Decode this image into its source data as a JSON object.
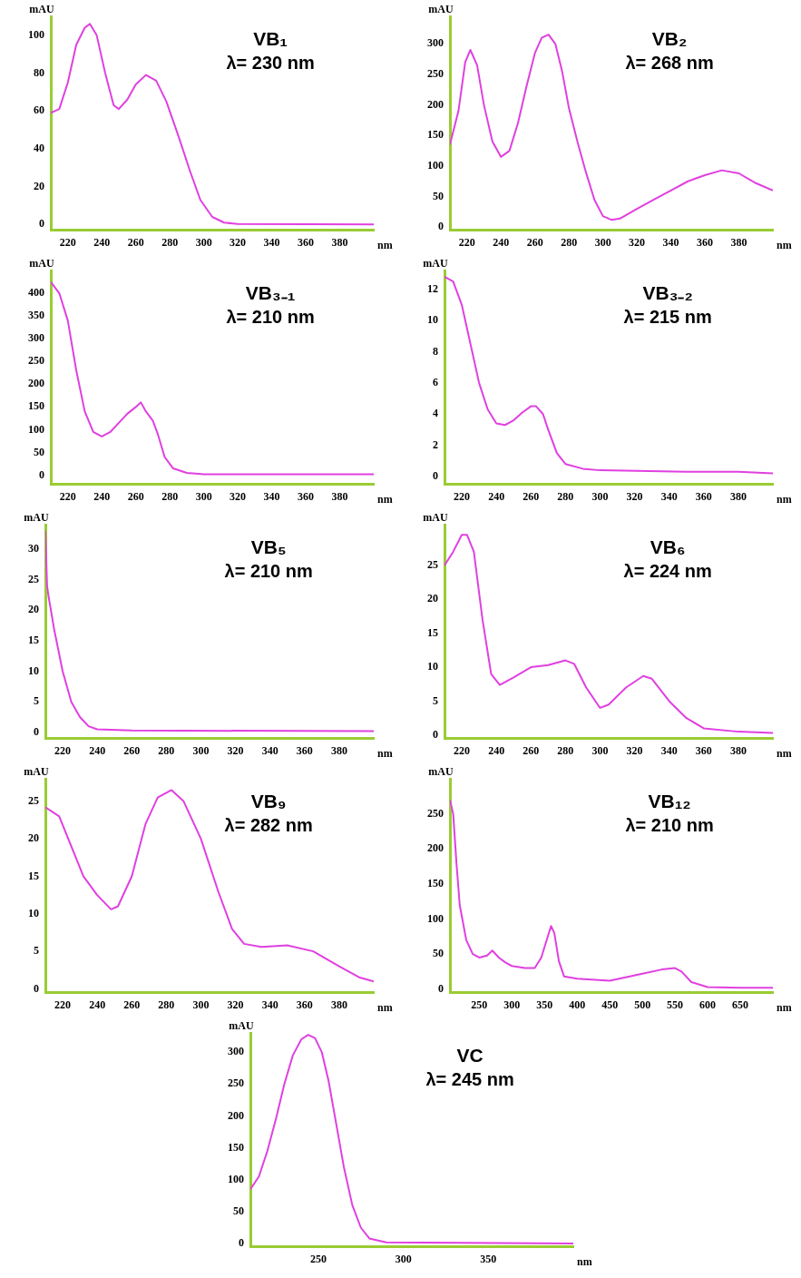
{
  "chart_data": [
    {
      "type": "line",
      "title": "VB₁",
      "subtitle": "λ= 230 nm",
      "xlabel": "nm",
      "ylabel": "mAU",
      "color": "#e040e0",
      "xlim": [
        210,
        400
      ],
      "ylim": [
        -3,
        110
      ],
      "xticks": [
        220,
        240,
        260,
        280,
        300,
        320,
        340,
        360,
        380
      ],
      "yticks": [
        0,
        20,
        40,
        60,
        80,
        100
      ],
      "x": [
        210,
        215,
        220,
        225,
        230,
        233,
        237,
        242,
        247,
        250,
        255,
        260,
        266,
        272,
        278,
        285,
        292,
        298,
        305,
        312,
        320,
        400
      ],
      "values": [
        59,
        61,
        75,
        95,
        104,
        106,
        100,
        80,
        63,
        61,
        66,
        74,
        79,
        76,
        65,
        47,
        28,
        13,
        4,
        1,
        0.3,
        0
      ]
    },
    {
      "type": "line",
      "title": "VB₂",
      "subtitle": "λ= 268 nm",
      "xlabel": "nm",
      "ylabel": "mAU",
      "color": "#e040e0",
      "xlim": [
        210,
        400
      ],
      "ylim": [
        -5,
        345
      ],
      "xticks": [
        220,
        240,
        260,
        280,
        300,
        320,
        340,
        360,
        380
      ],
      "yticks": [
        0,
        50,
        100,
        150,
        200,
        250,
        300
      ],
      "x": [
        210,
        215,
        219,
        222,
        226,
        230,
        235,
        240,
        245,
        250,
        255,
        260,
        264,
        268,
        272,
        276,
        280,
        285,
        290,
        295,
        300,
        305,
        310,
        320,
        330,
        340,
        350,
        360,
        370,
        380,
        390,
        400
      ],
      "values": [
        135,
        190,
        270,
        290,
        265,
        200,
        140,
        115,
        125,
        170,
        230,
        285,
        310,
        315,
        300,
        255,
        195,
        140,
        90,
        45,
        18,
        12,
        14,
        30,
        45,
        60,
        75,
        85,
        93,
        88,
        72,
        60
      ]
    },
    {
      "type": "line",
      "title": "VB₃₋₁",
      "subtitle": "λ= 210 nm",
      "xlabel": "nm",
      "ylabel": "mAU",
      "color": "#e040e0",
      "xlim": [
        210,
        400
      ],
      "ylim": [
        -20,
        450
      ],
      "xticks": [
        220,
        240,
        260,
        280,
        300,
        320,
        340,
        360,
        380
      ],
      "yticks": [
        0,
        50,
        100,
        150,
        200,
        250,
        300,
        350,
        400
      ],
      "x": [
        210,
        215,
        220,
        225,
        230,
        235,
        240,
        245,
        250,
        255,
        260,
        263,
        266,
        270,
        273,
        277,
        282,
        290,
        300,
        400
      ],
      "values": [
        425,
        400,
        340,
        230,
        140,
        95,
        85,
        95,
        115,
        135,
        150,
        160,
        140,
        120,
        90,
        40,
        15,
        5,
        2,
        2
      ]
    },
    {
      "type": "line",
      "title": "VB₃₋₂",
      "subtitle": "λ= 215 nm",
      "xlabel": "nm",
      "ylabel": "mAU",
      "color": "#e040e0",
      "xlim": [
        210,
        400
      ],
      "ylim": [
        -0.5,
        13.2
      ],
      "xticks": [
        220,
        240,
        260,
        280,
        300,
        320,
        340,
        360,
        380
      ],
      "yticks": [
        0,
        2,
        4,
        6,
        8,
        10,
        12
      ],
      "x": [
        210,
        215,
        220,
        225,
        230,
        235,
        240,
        245,
        250,
        255,
        260,
        263,
        267,
        270,
        275,
        280,
        290,
        300,
        350,
        380,
        400
      ],
      "values": [
        12.8,
        12.5,
        11,
        8.5,
        6,
        4.3,
        3.4,
        3.3,
        3.6,
        4.1,
        4.5,
        4.5,
        4,
        3,
        1.5,
        0.8,
        0.5,
        0.4,
        0.3,
        0.3,
        0.2
      ]
    },
    {
      "type": "line",
      "title": "VB₅",
      "subtitle": "λ= 210 nm",
      "xlabel": "nm",
      "ylabel": "mAU",
      "color": "#e040e0",
      "xlim": [
        210,
        400
      ],
      "ylim": [
        -1,
        34
      ],
      "xticks": [
        220,
        240,
        260,
        280,
        300,
        320,
        340,
        360,
        380
      ],
      "yticks": [
        0,
        5,
        10,
        15,
        20,
        25,
        30
      ],
      "x": [
        210,
        211,
        212,
        215,
        220,
        225,
        230,
        235,
        240,
        260,
        400
      ],
      "values": [
        33,
        24,
        22,
        17,
        10,
        5,
        2.5,
        1,
        0.5,
        0.3,
        0.2
      ]
    },
    {
      "type": "line",
      "title": "VB₆",
      "subtitle": "λ= 224 nm",
      "xlabel": "nm",
      "ylabel": "mAU",
      "color": "#e040e0",
      "xlim": [
        210,
        400
      ],
      "ylim": [
        -0.5,
        31
      ],
      "xticks": [
        220,
        240,
        260,
        280,
        300,
        320,
        340,
        360,
        380
      ],
      "yticks": [
        0,
        5,
        10,
        15,
        20,
        25
      ],
      "x": [
        210,
        215,
        220,
        223,
        227,
        232,
        237,
        242,
        250,
        260,
        270,
        280,
        285,
        292,
        300,
        305,
        315,
        325,
        330,
        340,
        350,
        360,
        380,
        400
      ],
      "values": [
        25,
        27,
        29.5,
        29.5,
        27,
        17,
        9,
        7.4,
        8.5,
        10,
        10.3,
        11,
        10.5,
        7,
        4,
        4.5,
        7,
        8.7,
        8.3,
        5,
        2.5,
        1,
        0.5,
        0.3
      ]
    },
    {
      "type": "line",
      "title": "VB₉",
      "subtitle": "λ= 282 nm",
      "xlabel": "nm",
      "ylabel": "mAU",
      "color": "#e040e0",
      "xlim": [
        210,
        400
      ],
      "ylim": [
        -0.5,
        28
      ],
      "xticks": [
        220,
        240,
        260,
        280,
        300,
        320,
        340,
        360,
        380
      ],
      "yticks": [
        0,
        5,
        10,
        15,
        20,
        25
      ],
      "x": [
        210,
        218,
        225,
        232,
        240,
        248,
        252,
        260,
        268,
        275,
        283,
        290,
        300,
        310,
        318,
        325,
        335,
        350,
        365,
        380,
        392,
        400
      ],
      "values": [
        24.2,
        23,
        19,
        15,
        12.5,
        10.6,
        11,
        15,
        22,
        25.5,
        26.5,
        25,
        20,
        13,
        8,
        6,
        5.6,
        5.8,
        5,
        3,
        1.5,
        1
      ]
    },
    {
      "type": "line",
      "title": "VB₁₂",
      "subtitle": "λ= 210 nm",
      "xlabel": "nm",
      "ylabel": "mAU",
      "color": "#e040e0",
      "xlim": [
        205,
        700
      ],
      "ylim": [
        -5,
        300
      ],
      "xticks": [
        250,
        300,
        350,
        400,
        450,
        500,
        550,
        600,
        650
      ],
      "yticks": [
        0,
        50,
        100,
        150,
        200,
        250
      ],
      "x": [
        205,
        210,
        215,
        220,
        230,
        240,
        250,
        262,
        270,
        280,
        290,
        300,
        320,
        335,
        345,
        355,
        360,
        365,
        372,
        380,
        400,
        450,
        500,
        530,
        550,
        560,
        575,
        600,
        650,
        700
      ],
      "values": [
        270,
        250,
        180,
        120,
        70,
        50,
        45,
        48,
        55,
        45,
        38,
        33,
        30,
        30,
        45,
        75,
        90,
        80,
        40,
        18,
        15,
        12,
        22,
        28,
        30,
        25,
        10,
        3,
        2,
        2
      ]
    },
    {
      "type": "line",
      "title": "VC",
      "subtitle": "λ= 245 nm",
      "xlabel": "nm",
      "ylabel": "mAU",
      "color": "#e040e0",
      "xlim": [
        210,
        400
      ],
      "ylim": [
        -5,
        330
      ],
      "xticks": [
        250,
        300,
        350
      ],
      "yticks": [
        0,
        50,
        100,
        150,
        200,
        250,
        300
      ],
      "x": [
        210,
        215,
        220,
        225,
        230,
        235,
        240,
        244,
        248,
        252,
        256,
        260,
        265,
        270,
        275,
        280,
        290,
        400
      ],
      "values": [
        85,
        105,
        145,
        195,
        250,
        295,
        320,
        327,
        322,
        300,
        255,
        195,
        120,
        60,
        25,
        8,
        2,
        0
      ]
    }
  ]
}
